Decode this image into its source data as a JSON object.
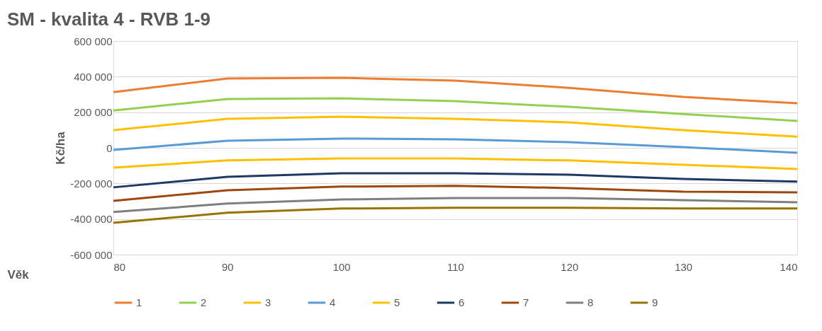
{
  "chart_data": {
    "type": "line",
    "title": "SM - kvalita 4 - RVB 1-9",
    "xlabel": "Věk",
    "ylabel": "Kč/ha",
    "x": [
      80,
      90,
      100,
      110,
      120,
      130,
      140
    ],
    "xlim": [
      80,
      140
    ],
    "xticks": [
      80,
      90,
      100,
      110,
      120,
      130,
      140
    ],
    "ylim": [
      -600000,
      600000
    ],
    "yticks": [
      {
        "value": -600000,
        "label": "-600 000"
      },
      {
        "value": -400000,
        "label": "-400 000"
      },
      {
        "value": -200000,
        "label": "-200 000"
      },
      0,
      {
        "value": 200000,
        "label": "200 000"
      },
      {
        "value": 400000,
        "label": "400 000"
      },
      {
        "value": 600000,
        "label": "600 000"
      }
    ],
    "grid": "y",
    "legend": "bottom",
    "marker": "none",
    "line_style": "solid",
    "series": [
      {
        "name": "1",
        "color": "#ed7d31",
        "values": [
          313000,
          389000,
          393000,
          377000,
          337000,
          286000,
          250000
        ]
      },
      {
        "name": "2",
        "color": "#92d050",
        "values": [
          210000,
          274000,
          278000,
          262000,
          230000,
          190000,
          151000
        ]
      },
      {
        "name": "3",
        "color": "#ffc000",
        "values": [
          99000,
          163000,
          175000,
          163000,
          143000,
          99000,
          63000
        ]
      },
      {
        "name": "4",
        "color": "#5b9bd5",
        "values": [
          -12000,
          40000,
          52000,
          48000,
          32000,
          4000,
          -28000
        ]
      },
      {
        "name": "5",
        "color": "#ffc000",
        "values": [
          -111000,
          -71000,
          -60000,
          -60000,
          -71000,
          -95000,
          -119000
        ]
      },
      {
        "name": "6",
        "color": "#203864",
        "values": [
          -222000,
          -163000,
          -143000,
          -143000,
          -151000,
          -175000,
          -190000
        ]
      },
      {
        "name": "7",
        "color": "#9e480e",
        "values": [
          -298000,
          -238000,
          -218000,
          -214000,
          -226000,
          -246000,
          -250000
        ]
      },
      {
        "name": "8",
        "color": "#7f7f7f",
        "values": [
          -361000,
          -313000,
          -290000,
          -282000,
          -282000,
          -294000,
          -306000
        ]
      },
      {
        "name": "9",
        "color": "#997300",
        "values": [
          -421000,
          -365000,
          -341000,
          -337000,
          -337000,
          -341000,
          -341000
        ]
      }
    ]
  }
}
